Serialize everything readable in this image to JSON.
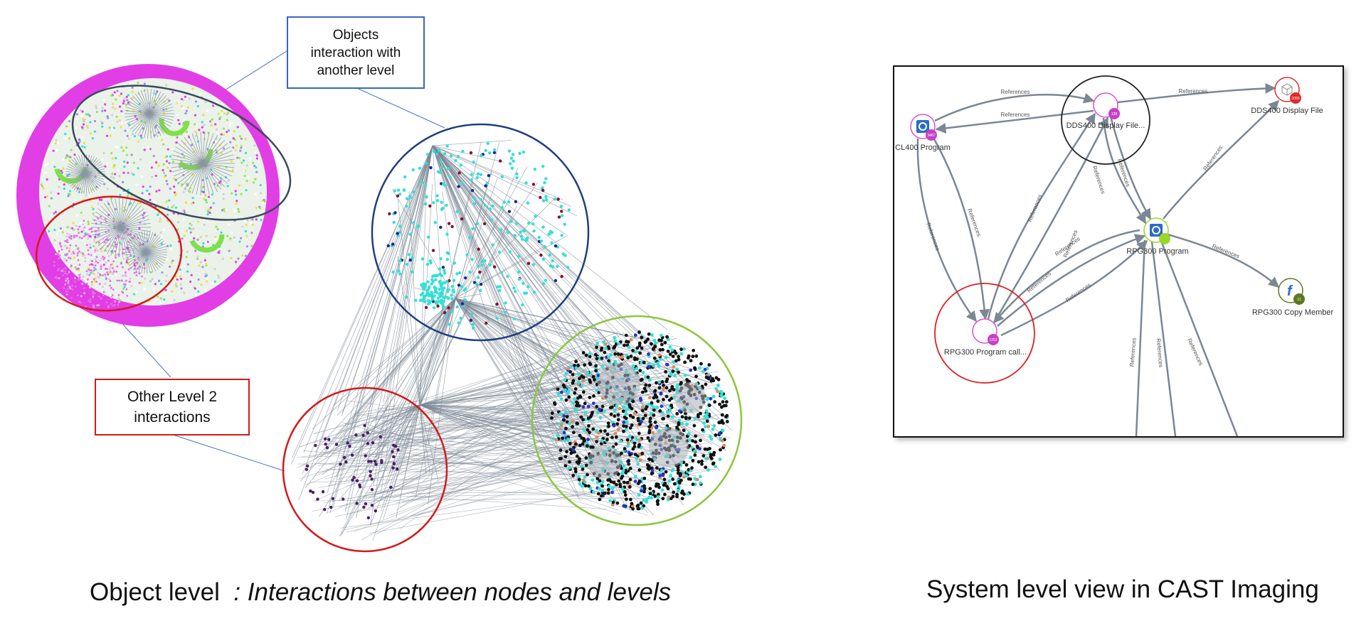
{
  "callouts": {
    "objects_interaction": [
      "Objects",
      "interaction with",
      "another level"
    ],
    "other_level": [
      "Other Level 2",
      "interactions"
    ]
  },
  "captions": {
    "left_main": "Object level",
    "left_italic": ": Interactions between nodes and levels",
    "right": "System level view in CAST Imaging"
  },
  "colors": {
    "callout_blue": "#3a66c4",
    "callout_red": "#d21a1a",
    "highlight_navy": "#1f3f7e",
    "highlight_green": "#8cc63f",
    "edge_gray": "#7b8794",
    "magenta_nodes": "#e23ee6",
    "cyan_nodes": "#33e0d6"
  },
  "system_view": {
    "edge_label": "References",
    "nodes": [
      {
        "id": "cl400",
        "label": "CL400 Program",
        "badge": "3467",
        "icon": "gear-icon",
        "color": "#d94fd6"
      },
      {
        "id": "dds_file_hub",
        "label": "DDS400 Display File...",
        "badge": "138",
        "icon": "none",
        "color": "#d94fd6"
      },
      {
        "id": "dds_display",
        "label": "DDS400 Display File",
        "badge": "2069",
        "icon": "cube-icon",
        "color": "#e02b2b"
      },
      {
        "id": "rpg_program",
        "label": "RPG300 Program",
        "badge": "",
        "icon": "gear-icon",
        "color": "#9cd62b"
      },
      {
        "id": "rpg_copy",
        "label": "RPG300 Copy Member",
        "badge": "11",
        "icon": "function-icon",
        "color": "#5b7a1e"
      },
      {
        "id": "rpg_call",
        "label": "RPG300 Program call...",
        "badge": "1252",
        "icon": "none",
        "color": "#d94fd6"
      }
    ]
  }
}
